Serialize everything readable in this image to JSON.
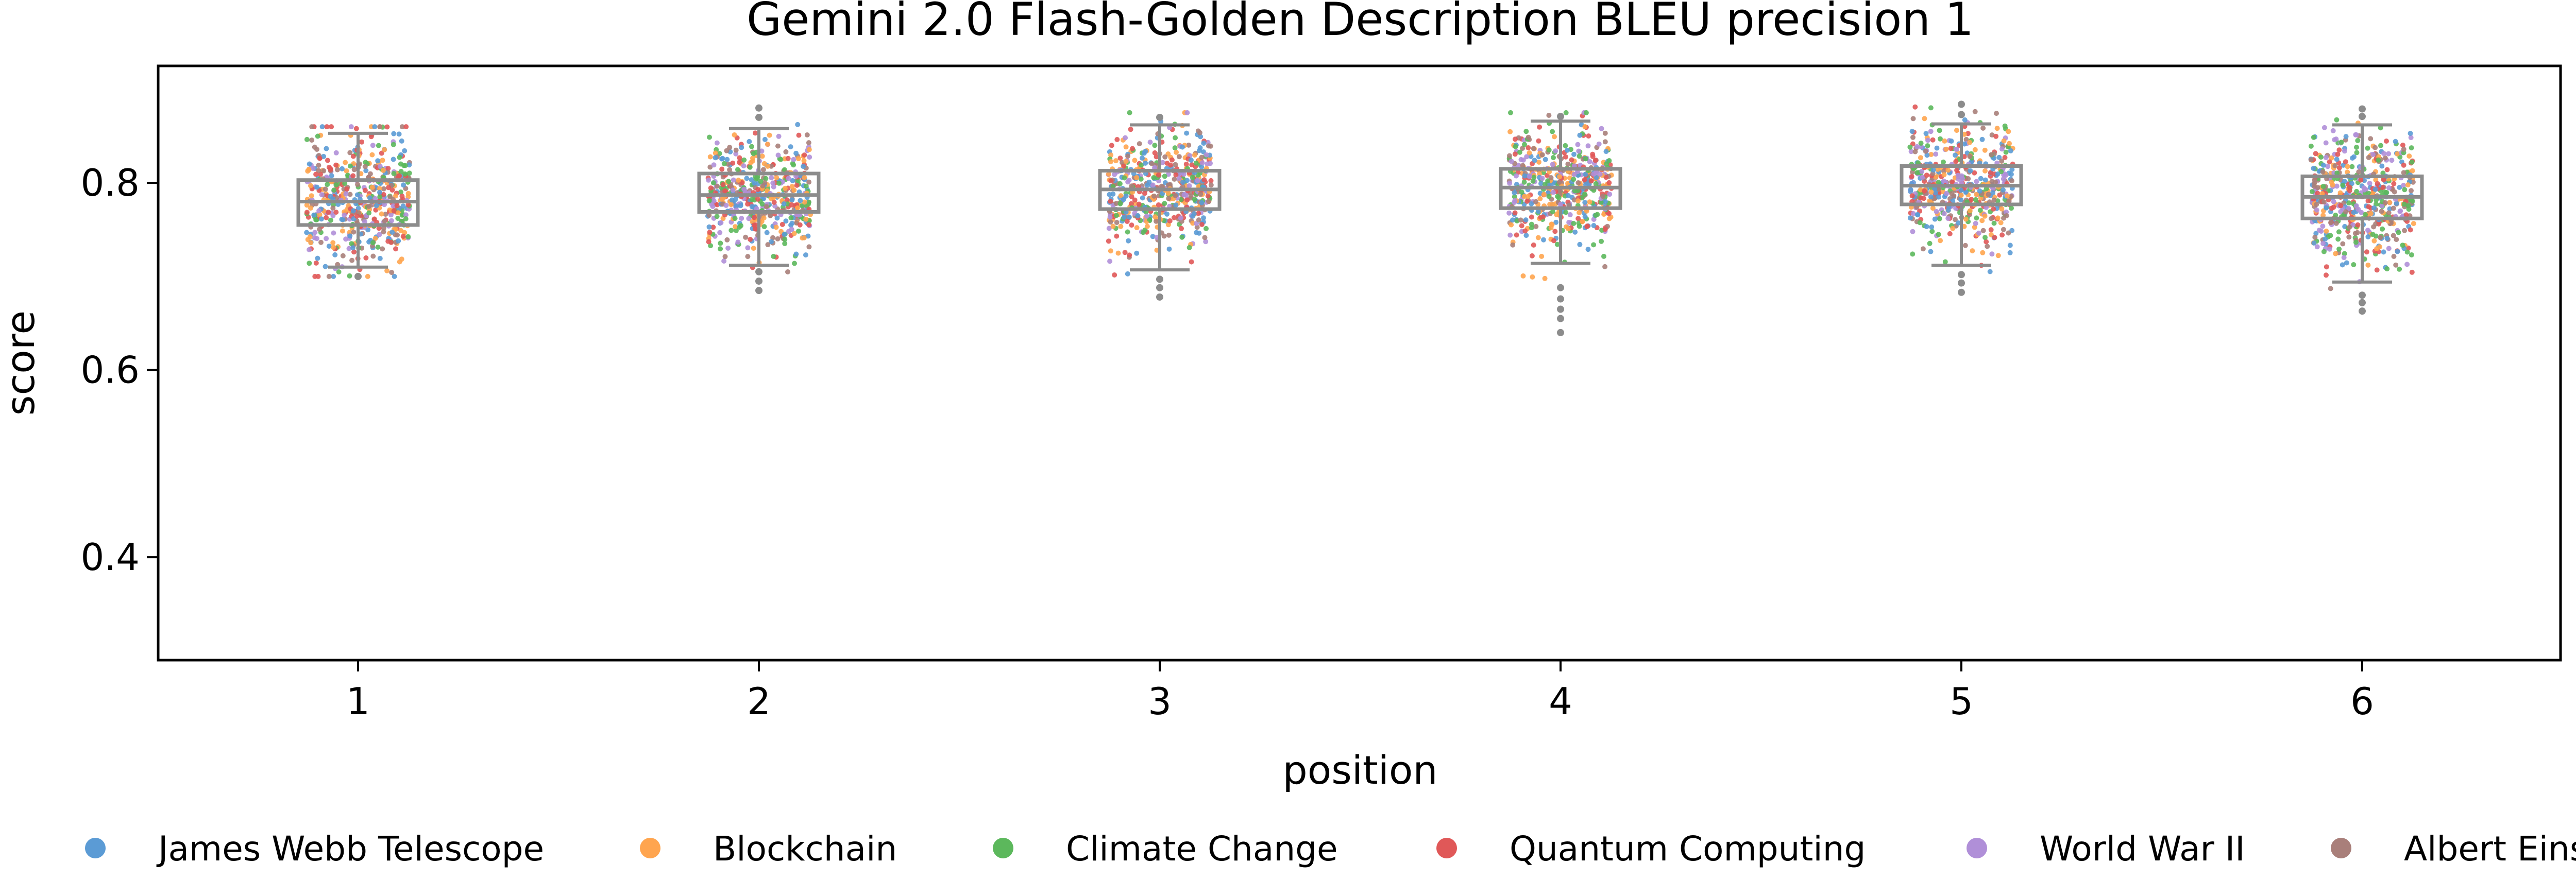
{
  "chart_data": {
    "type": "scatter",
    "subtype": "strip-plot-with-boxplot",
    "title": "Gemini 2.0 Flash-Golden Description BLEU precision 1",
    "xlabel": "position",
    "ylabel": "score",
    "categories": [
      "1",
      "2",
      "3",
      "4",
      "5",
      "6"
    ],
    "ylim": [
      0.29,
      0.925
    ],
    "yticks": [
      0.4,
      0.6,
      0.8
    ],
    "ytick_labels": [
      "0.4",
      "0.6",
      "0.8"
    ],
    "grid": false,
    "legend_position": "bottom",
    "box_color": "#8c8c8c",
    "series": [
      {
        "name": "James Webb Telescope",
        "color": "#5b9bd5"
      },
      {
        "name": "Blockchain",
        "color": "#ffa54f"
      },
      {
        "name": "Climate Change",
        "color": "#5cb85c"
      },
      {
        "name": "Quantum Computing",
        "color": "#e05858"
      },
      {
        "name": "World War II",
        "color": "#b08fd8"
      },
      {
        "name": "Albert Einstein",
        "color": "#a97f7a"
      }
    ],
    "boxes": [
      {
        "position": "1",
        "whisker_low": 0.71,
        "q1": 0.755,
        "median": 0.78,
        "q3": 0.803,
        "whisker_high": 0.853,
        "outliers": [
          0.7
        ]
      },
      {
        "position": "2",
        "whisker_low": 0.712,
        "q1": 0.769,
        "median": 0.787,
        "q3": 0.81,
        "whisker_high": 0.858,
        "outliers": [
          0.685,
          0.695,
          0.705,
          0.87,
          0.88
        ]
      },
      {
        "position": "3",
        "whisker_low": 0.707,
        "q1": 0.772,
        "median": 0.793,
        "q3": 0.813,
        "whisker_high": 0.862,
        "outliers": [
          0.678,
          0.688,
          0.697,
          0.87
        ]
      },
      {
        "position": "4",
        "whisker_low": 0.714,
        "q1": 0.773,
        "median": 0.795,
        "q3": 0.815,
        "whisker_high": 0.866,
        "outliers": [
          0.64,
          0.655,
          0.665,
          0.676,
          0.688,
          0.871
        ]
      },
      {
        "position": "5",
        "whisker_low": 0.712,
        "q1": 0.777,
        "median": 0.797,
        "q3": 0.818,
        "whisker_high": 0.863,
        "outliers": [
          0.683,
          0.693,
          0.702,
          0.873,
          0.884
        ]
      },
      {
        "position": "6",
        "whisker_low": 0.694,
        "q1": 0.762,
        "median": 0.785,
        "q3": 0.807,
        "whisker_high": 0.862,
        "outliers": [
          0.663,
          0.672,
          0.68,
          0.871,
          0.879
        ]
      }
    ],
    "point_spread": [
      {
        "position": "1",
        "min": 0.7,
        "max": 0.86
      },
      {
        "position": "2",
        "min": 0.685,
        "max": 0.885
      },
      {
        "position": "3",
        "min": 0.675,
        "max": 0.875
      },
      {
        "position": "4",
        "min": 0.64,
        "max": 0.875
      },
      {
        "position": "5",
        "min": 0.68,
        "max": 0.885
      },
      {
        "position": "6",
        "min": 0.66,
        "max": 0.88
      }
    ]
  }
}
